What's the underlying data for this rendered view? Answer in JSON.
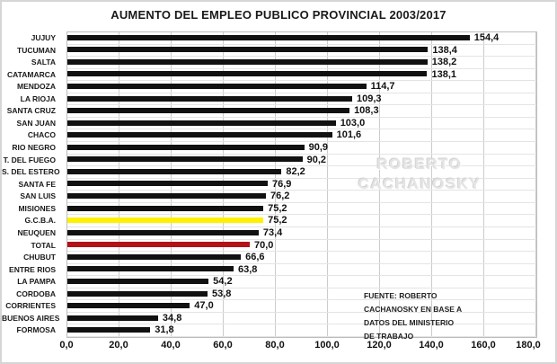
{
  "title": "AUMENTO DEL EMPLEO PUBLICO PROVINCIAL 2003/2017",
  "watermark": {
    "line1": "ROBERTO",
    "line2": "CACHANOSKY"
  },
  "source_note": {
    "lines": [
      "FUENTE: ROBERTO",
      "CACHANOSKY EN BASE A",
      "DATOS DEL MINISTERIO",
      "DE TRABAJO"
    ]
  },
  "colors": {
    "bar_default": "#111111",
    "bar_highlight_gcba": "#fff100",
    "bar_highlight_total": "#b31217",
    "vertical_gridline": "#cccccc",
    "row_separator": "#e4e4e4",
    "plot_border": "#bdbdbd"
  },
  "chart_data": {
    "type": "bar",
    "orientation": "horizontal",
    "title": "AUMENTO DEL EMPLEO PUBLICO PROVINCIAL 2003/2017",
    "xlabel": "",
    "ylabel": "",
    "xlim": [
      0,
      180
    ],
    "grid": true,
    "x_ticks": [
      "0,0",
      "20,0",
      "40,0",
      "60,0",
      "80,0",
      "100,0",
      "120,0",
      "140,0",
      "160,0",
      "180,0"
    ],
    "x_tick_values": [
      0,
      20,
      40,
      60,
      80,
      100,
      120,
      140,
      160,
      180
    ],
    "categories": [
      "JUJUY",
      "TUCUMAN",
      "SALTA",
      "CATAMARCA",
      "MENDOZA",
      "LA RIOJA",
      "SANTA CRUZ",
      "SAN JUAN",
      "CHACO",
      "RIO NEGRO",
      "T. DEL FUEGO",
      "S. DEL ESTERO",
      "SANTA FE",
      "SAN LUIS",
      "MISIONES",
      "G.C.B.A.",
      "NEUQUEN",
      "TOTAL",
      "CHUBUT",
      "ENTRE RIOS",
      "LA PAMPA",
      "CORDOBA",
      "CORRIENTES",
      "BUENOS AIRES",
      "FORMOSA"
    ],
    "values": [
      154.4,
      138.4,
      138.2,
      138.1,
      114.7,
      109.3,
      108.3,
      103.0,
      101.6,
      90.9,
      90.2,
      82.2,
      76.9,
      76.2,
      75.2,
      75.2,
      73.4,
      70.0,
      66.6,
      63.8,
      54.2,
      53.8,
      47.0,
      34.8,
      31.8
    ],
    "value_labels": [
      "154,4",
      "138,4",
      "138,2",
      "138,1",
      "114,7",
      "109,3",
      "108,3",
      "103,0",
      "101,6",
      "90,9",
      "90,2",
      "82,2",
      "76,9",
      "76,2",
      "75,2",
      "75,2",
      "73,4",
      "70,0",
      "66,6",
      "63,8",
      "54,2",
      "53,8",
      "47,0",
      "34,8",
      "31,8"
    ],
    "bar_colors": [
      "#111111",
      "#111111",
      "#111111",
      "#111111",
      "#111111",
      "#111111",
      "#111111",
      "#111111",
      "#111111",
      "#111111",
      "#111111",
      "#111111",
      "#111111",
      "#111111",
      "#111111",
      "#fff100",
      "#111111",
      "#b31217",
      "#111111",
      "#111111",
      "#111111",
      "#111111",
      "#111111",
      "#111111",
      "#111111"
    ],
    "legend": null
  }
}
